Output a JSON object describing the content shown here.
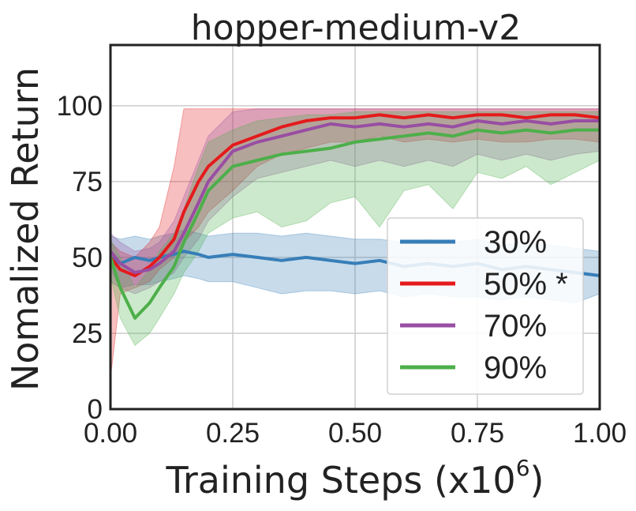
{
  "chart_data": {
    "type": "line",
    "title": "hopper-medium-v2",
    "xlabel": "Training Steps (x10",
    "xlabel_exponent": "6",
    "xlabel_suffix": ")",
    "ylabel": "Nomalized Return",
    "xlim": [
      0,
      1.0
    ],
    "ylim": [
      0,
      120
    ],
    "xticks": [
      0.0,
      0.25,
      0.5,
      0.75,
      1.0
    ],
    "xtick_labels": [
      "0.00",
      "0.25",
      "0.50",
      "0.75",
      "1.00"
    ],
    "yticks": [
      0,
      25,
      50,
      75,
      100
    ],
    "ytick_labels": [
      "0",
      "25",
      "50",
      "75",
      "100"
    ],
    "grid": true,
    "legend_position": "lower-right",
    "series": [
      {
        "name": "30%",
        "color": "#377eb8",
        "x": [
          0,
          0.02,
          0.05,
          0.08,
          0.1,
          0.13,
          0.15,
          0.18,
          0.2,
          0.25,
          0.3,
          0.35,
          0.4,
          0.45,
          0.5,
          0.55,
          0.6,
          0.65,
          0.7,
          0.75,
          0.8,
          0.85,
          0.9,
          0.95,
          1.0
        ],
        "mean": [
          50,
          48,
          50,
          49,
          50,
          51,
          52,
          51,
          50,
          51,
          50,
          49,
          50,
          49,
          48,
          49,
          47,
          48,
          47,
          48,
          46,
          47,
          46,
          45,
          44
        ],
        "low": [
          42,
          40,
          41,
          41,
          42,
          43,
          44,
          43,
          42,
          42,
          40,
          38,
          39,
          39,
          38,
          39,
          37,
          38,
          37,
          37,
          36,
          37,
          36,
          35,
          38
        ],
        "high": [
          57,
          56,
          57,
          56,
          57,
          58,
          59,
          58,
          57,
          58,
          58,
          57,
          58,
          57,
          56,
          56,
          55,
          56,
          55,
          56,
          54,
          55,
          54,
          53,
          52
        ]
      },
      {
        "name": "50% *",
        "color": "#e41a1c",
        "x": [
          0,
          0.02,
          0.05,
          0.08,
          0.1,
          0.13,
          0.15,
          0.18,
          0.2,
          0.25,
          0.3,
          0.35,
          0.4,
          0.45,
          0.5,
          0.55,
          0.6,
          0.65,
          0.7,
          0.75,
          0.8,
          0.85,
          0.9,
          0.95,
          1.0
        ],
        "mean": [
          50,
          46,
          44,
          47,
          50,
          56,
          65,
          75,
          80,
          87,
          90,
          93,
          95,
          96,
          96,
          97,
          96,
          97,
          96,
          97,
          97,
          96,
          97,
          97,
          96
        ],
        "low": [
          10,
          38,
          40,
          42,
          46,
          50,
          55,
          60,
          65,
          72,
          80,
          84,
          86,
          88,
          88,
          90,
          88,
          89,
          88,
          89,
          88,
          88,
          89,
          89,
          88
        ],
        "high": [
          55,
          52,
          50,
          55,
          60,
          80,
          99,
          99,
          99,
          99,
          99,
          99,
          99,
          99,
          99,
          99,
          99,
          99,
          99,
          99,
          99,
          99,
          99,
          99,
          99
        ]
      },
      {
        "name": "70%",
        "color": "#984ea3",
        "x": [
          0,
          0.02,
          0.05,
          0.08,
          0.1,
          0.13,
          0.15,
          0.18,
          0.2,
          0.25,
          0.3,
          0.35,
          0.4,
          0.45,
          0.5,
          0.55,
          0.6,
          0.65,
          0.7,
          0.75,
          0.8,
          0.85,
          0.9,
          0.95,
          1.0
        ],
        "mean": [
          52,
          48,
          45,
          46,
          48,
          52,
          58,
          68,
          75,
          85,
          88,
          90,
          92,
          94,
          93,
          94,
          93,
          94,
          93,
          95,
          94,
          95,
          94,
          95,
          95
        ],
        "low": [
          46,
          40,
          38,
          40,
          42,
          45,
          50,
          56,
          62,
          70,
          76,
          78,
          80,
          82,
          80,
          82,
          80,
          82,
          80,
          84,
          82,
          84,
          82,
          84,
          85
        ],
        "high": [
          58,
          55,
          52,
          53,
          55,
          62,
          70,
          82,
          90,
          98,
          99,
          99,
          99,
          99,
          99,
          99,
          99,
          99,
          99,
          99,
          99,
          99,
          99,
          99,
          99
        ]
      },
      {
        "name": "90%",
        "color": "#4daf4a",
        "x": [
          0,
          0.02,
          0.05,
          0.08,
          0.1,
          0.13,
          0.15,
          0.18,
          0.2,
          0.25,
          0.3,
          0.35,
          0.4,
          0.45,
          0.5,
          0.55,
          0.6,
          0.65,
          0.7,
          0.75,
          0.8,
          0.85,
          0.9,
          0.95,
          1.0
        ],
        "mean": [
          50,
          40,
          30,
          35,
          40,
          47,
          55,
          65,
          72,
          80,
          82,
          84,
          85,
          86,
          88,
          89,
          90,
          91,
          90,
          92,
          91,
          92,
          91,
          92,
          92
        ],
        "low": [
          44,
          30,
          21,
          25,
          30,
          38,
          45,
          52,
          58,
          63,
          65,
          60,
          62,
          68,
          70,
          60,
          72,
          74,
          66,
          78,
          76,
          80,
          74,
          78,
          82
        ],
        "high": [
          56,
          50,
          40,
          46,
          52,
          58,
          66,
          80,
          88,
          92,
          95,
          96,
          97,
          97,
          98,
          98,
          98,
          98,
          98,
          98,
          98,
          98,
          98,
          98,
          98
        ]
      }
    ]
  }
}
